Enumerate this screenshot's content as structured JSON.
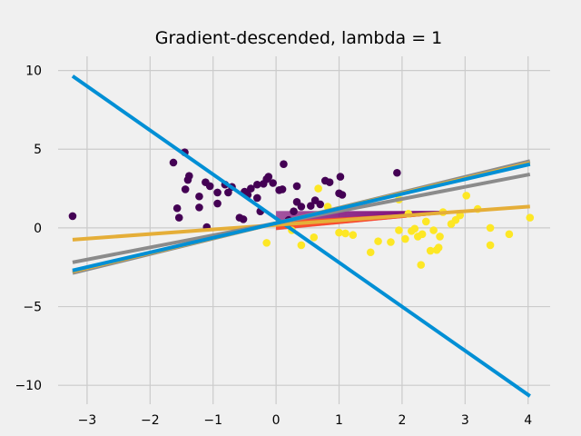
{
  "chart_data": {
    "type": "scatter",
    "title": "Gradient-descended, lambda = 1",
    "xlabel": "",
    "ylabel": "",
    "xlim": [
      -3.46,
      4.35
    ],
    "ylim": [
      -11.2,
      10.9
    ],
    "x_ticks": [
      -3,
      -2,
      -1,
      0,
      1,
      2,
      3,
      4
    ],
    "x_tick_labels": [
      "−3",
      "−2",
      "−1",
      "0",
      "1",
      "2",
      "3",
      "4"
    ],
    "y_ticks": [
      -10,
      -5,
      0,
      5,
      10
    ],
    "y_tick_labels": [
      "−10",
      "−5",
      "0",
      "5",
      "10"
    ],
    "grid": true,
    "legend": "none",
    "colors": {
      "background": "#f0f0f0",
      "grid": "#cbcbcb",
      "class_0": "#440154",
      "class_1": "#fde725",
      "blue_line": "#008fd5",
      "orange_line": "#e5ae38",
      "gray_line": "#8b8b8b",
      "brown_fan": "#810f7c",
      "red_fan": "#fc4f30"
    },
    "scatter_series": [
      {
        "class": 0,
        "color": "#440154",
        "points": [
          [
            -3.23,
            0.75
          ],
          [
            -1.63,
            4.15
          ],
          [
            -1.45,
            4.8
          ],
          [
            -1.38,
            3.3
          ],
          [
            -1.4,
            3.05
          ],
          [
            -1.44,
            2.45
          ],
          [
            -1.57,
            1.25
          ],
          [
            -1.54,
            0.65
          ],
          [
            -1.22,
            2.0
          ],
          [
            -1.22,
            1.3
          ],
          [
            -1.12,
            2.9
          ],
          [
            -1.05,
            2.65
          ],
          [
            -1.1,
            0.05
          ],
          [
            -0.93,
            2.25
          ],
          [
            -0.93,
            1.55
          ],
          [
            -0.81,
            2.75
          ],
          [
            -0.76,
            2.25
          ],
          [
            -0.7,
            2.6
          ],
          [
            -0.58,
            0.65
          ],
          [
            -0.52,
            0.55
          ],
          [
            -0.5,
            2.3
          ],
          [
            -0.45,
            2.1
          ],
          [
            -0.4,
            2.5
          ],
          [
            -0.3,
            2.75
          ],
          [
            -0.3,
            1.9
          ],
          [
            -0.25,
            1.05
          ],
          [
            -0.2,
            2.8
          ],
          [
            -0.15,
            3.1
          ],
          [
            -0.12,
            3.25
          ],
          [
            -0.05,
            2.85
          ],
          [
            0.05,
            2.4
          ],
          [
            0.1,
            2.45
          ],
          [
            0.12,
            4.05
          ],
          [
            0.2,
            0.5
          ],
          [
            0.28,
            1.05
          ],
          [
            0.33,
            2.65
          ],
          [
            0.33,
            1.65
          ],
          [
            0.4,
            1.35
          ],
          [
            0.55,
            1.4
          ],
          [
            0.62,
            1.75
          ],
          [
            0.7,
            1.5
          ],
          [
            0.78,
            3.0
          ],
          [
            0.85,
            2.9
          ],
          [
            1.0,
            2.2
          ],
          [
            1.02,
            3.25
          ],
          [
            1.05,
            2.1
          ],
          [
            1.92,
            3.5
          ]
        ]
      },
      {
        "class": 1,
        "color": "#fde725",
        "points": [
          [
            -0.15,
            -0.95
          ],
          [
            0.25,
            -0.15
          ],
          [
            0.4,
            -1.1
          ],
          [
            0.6,
            -0.6
          ],
          [
            0.67,
            2.5
          ],
          [
            0.82,
            1.35
          ],
          [
            1.0,
            -0.3
          ],
          [
            1.1,
            -0.35
          ],
          [
            1.22,
            -0.45
          ],
          [
            1.5,
            -1.55
          ],
          [
            1.62,
            -0.85
          ],
          [
            1.82,
            -0.9
          ],
          [
            1.95,
            1.8
          ],
          [
            1.95,
            -0.15
          ],
          [
            2.05,
            -0.7
          ],
          [
            2.1,
            0.9
          ],
          [
            2.15,
            -0.2
          ],
          [
            2.2,
            -0.05
          ],
          [
            2.25,
            -0.55
          ],
          [
            2.3,
            -2.35
          ],
          [
            2.32,
            -0.4
          ],
          [
            2.38,
            0.4
          ],
          [
            2.45,
            -1.45
          ],
          [
            2.5,
            -0.15
          ],
          [
            2.55,
            -1.4
          ],
          [
            2.58,
            -1.25
          ],
          [
            2.6,
            -0.55
          ],
          [
            2.65,
            1.0
          ],
          [
            2.78,
            0.25
          ],
          [
            2.85,
            0.5
          ],
          [
            2.92,
            0.8
          ],
          [
            3.02,
            2.05
          ],
          [
            3.2,
            1.2
          ],
          [
            3.4,
            -1.1
          ],
          [
            3.4,
            0.0
          ],
          [
            3.7,
            -0.4
          ],
          [
            4.03,
            0.65
          ]
        ]
      }
    ],
    "lines": [
      {
        "color": "#008fd5",
        "slope": -2.8,
        "intercept": 0.6
      },
      {
        "color": "#e5ae38",
        "slope": 0.29,
        "intercept": 0.19
      },
      {
        "color": "#8b8b8b",
        "slope": 0.77,
        "intercept": 0.3
      },
      {
        "color": "#8b8b8b",
        "slope": 0.98,
        "intercept": 0.3
      },
      {
        "color": "#e5ae38",
        "slope": 0.95,
        "intercept": 0.3
      },
      {
        "color": "#008fd5",
        "slope": 0.93,
        "intercept": 0.3
      }
    ],
    "fan_segments": [
      {
        "color": "#810f7c",
        "x_range": [
          0,
          3
        ],
        "start_y_range": [
          -0.1,
          1.05
        ],
        "end_y": 1.05
      },
      {
        "color": "#fc4f30",
        "x_range": [
          0,
          3
        ],
        "start_y_range": [
          -0.1,
          0.4
        ],
        "end_y": 1.05
      }
    ]
  }
}
